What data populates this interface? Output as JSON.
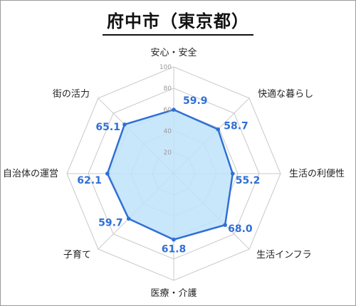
{
  "title": "府中市（東京都）",
  "chart_data": {
    "type": "radar",
    "title": "府中市（東京都）",
    "axes": [
      "安心・安全",
      "快適な暮らし",
      "生活の利便性",
      "生活インフラ",
      "医療・介護",
      "子育て",
      "自治体の運営",
      "街の活力"
    ],
    "values": [
      59.9,
      58.7,
      55.2,
      68.0,
      61.8,
      59.7,
      62.1,
      65.1
    ],
    "value_labels": [
      "59.9",
      "58.7",
      "55.2",
      "68.0",
      "61.8",
      "59.7",
      "62.1",
      "65.1"
    ],
    "rlim": [
      0,
      100
    ],
    "ticks": [
      20,
      40,
      60,
      80,
      100
    ],
    "grid": true,
    "colors": {
      "series_line": "#2f6fd6",
      "series_fill": "#bfe3fa",
      "value_text": "#2f6fd6",
      "grid": "#c8c8c8"
    }
  }
}
